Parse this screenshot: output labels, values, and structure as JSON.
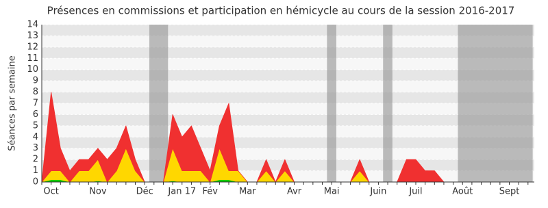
{
  "chart_data": {
    "type": "stacked_area",
    "title": "Présences en commissions et participation en hémicycle au cours de la session 2016-2017",
    "y_label": "Séances par semaine",
    "categories": [
      null,
      "Oct",
      null,
      null,
      null,
      null,
      "Nov",
      null,
      null,
      null,
      null,
      "Déc",
      null,
      null,
      null,
      "Jan 17",
      null,
      null,
      "Fév",
      null,
      null,
      null,
      "Mar",
      null,
      null,
      null,
      null,
      "Avr",
      null,
      null,
      null,
      "Mai",
      null,
      null,
      null,
      null,
      "Juin",
      null,
      null,
      null,
      "Juil",
      null,
      null,
      null,
      null,
      "Août",
      null,
      null,
      null,
      null,
      "Sept",
      null,
      null
    ],
    "series": [
      {
        "color": "#00cc00",
        "values": [
          0,
          0.2,
          0.2,
          0,
          0,
          0,
          0.1,
          0,
          0,
          0,
          0,
          0,
          0,
          0,
          0.1,
          0,
          0,
          0,
          0,
          0.2,
          0.2,
          0,
          0,
          0,
          0,
          0,
          0,
          0,
          0,
          0,
          0,
          0,
          0,
          0,
          0,
          0,
          0,
          0,
          0,
          0,
          0,
          0,
          0,
          0,
          0,
          0,
          0,
          0,
          0,
          0,
          0,
          0,
          0
        ]
      },
      {
        "color": "#ffd700",
        "values": [
          0,
          0.8,
          0.8,
          0,
          1,
          1,
          1.9,
          0,
          1,
          3,
          1,
          0,
          0,
          0,
          2.9,
          1,
          1,
          1,
          0,
          2.8,
          0.8,
          1,
          0,
          0,
          1,
          0,
          1,
          0,
          0,
          0,
          0,
          0,
          0,
          0,
          1,
          0,
          0,
          0,
          0,
          0,
          0,
          0,
          0,
          0,
          0,
          0,
          0,
          0,
          0,
          0,
          0,
          0,
          0
        ]
      },
      {
        "color": "#f03030",
        "values": [
          0,
          7,
          2,
          1,
          1,
          1,
          1,
          2,
          2,
          2,
          1,
          0,
          0,
          0,
          3,
          3,
          4,
          2,
          1,
          2,
          6,
          0,
          0,
          0,
          1,
          0,
          1,
          0,
          0,
          0,
          0,
          0,
          0,
          0,
          1,
          0,
          0,
          0,
          0,
          2,
          2,
          1,
          1,
          0,
          0,
          0,
          0,
          0,
          0,
          0,
          0,
          0,
          0
        ]
      }
    ],
    "shaded_ranges": [
      [
        12,
        13
      ],
      [
        31,
        31
      ],
      [
        37,
        37
      ],
      [
        45,
        52
      ]
    ],
    "ylim": [
      0,
      14
    ],
    "yticks": [
      0,
      1,
      2,
      3,
      4,
      5,
      6,
      7,
      8,
      9,
      10,
      11,
      12,
      13,
      14
    ],
    "grid": true
  }
}
